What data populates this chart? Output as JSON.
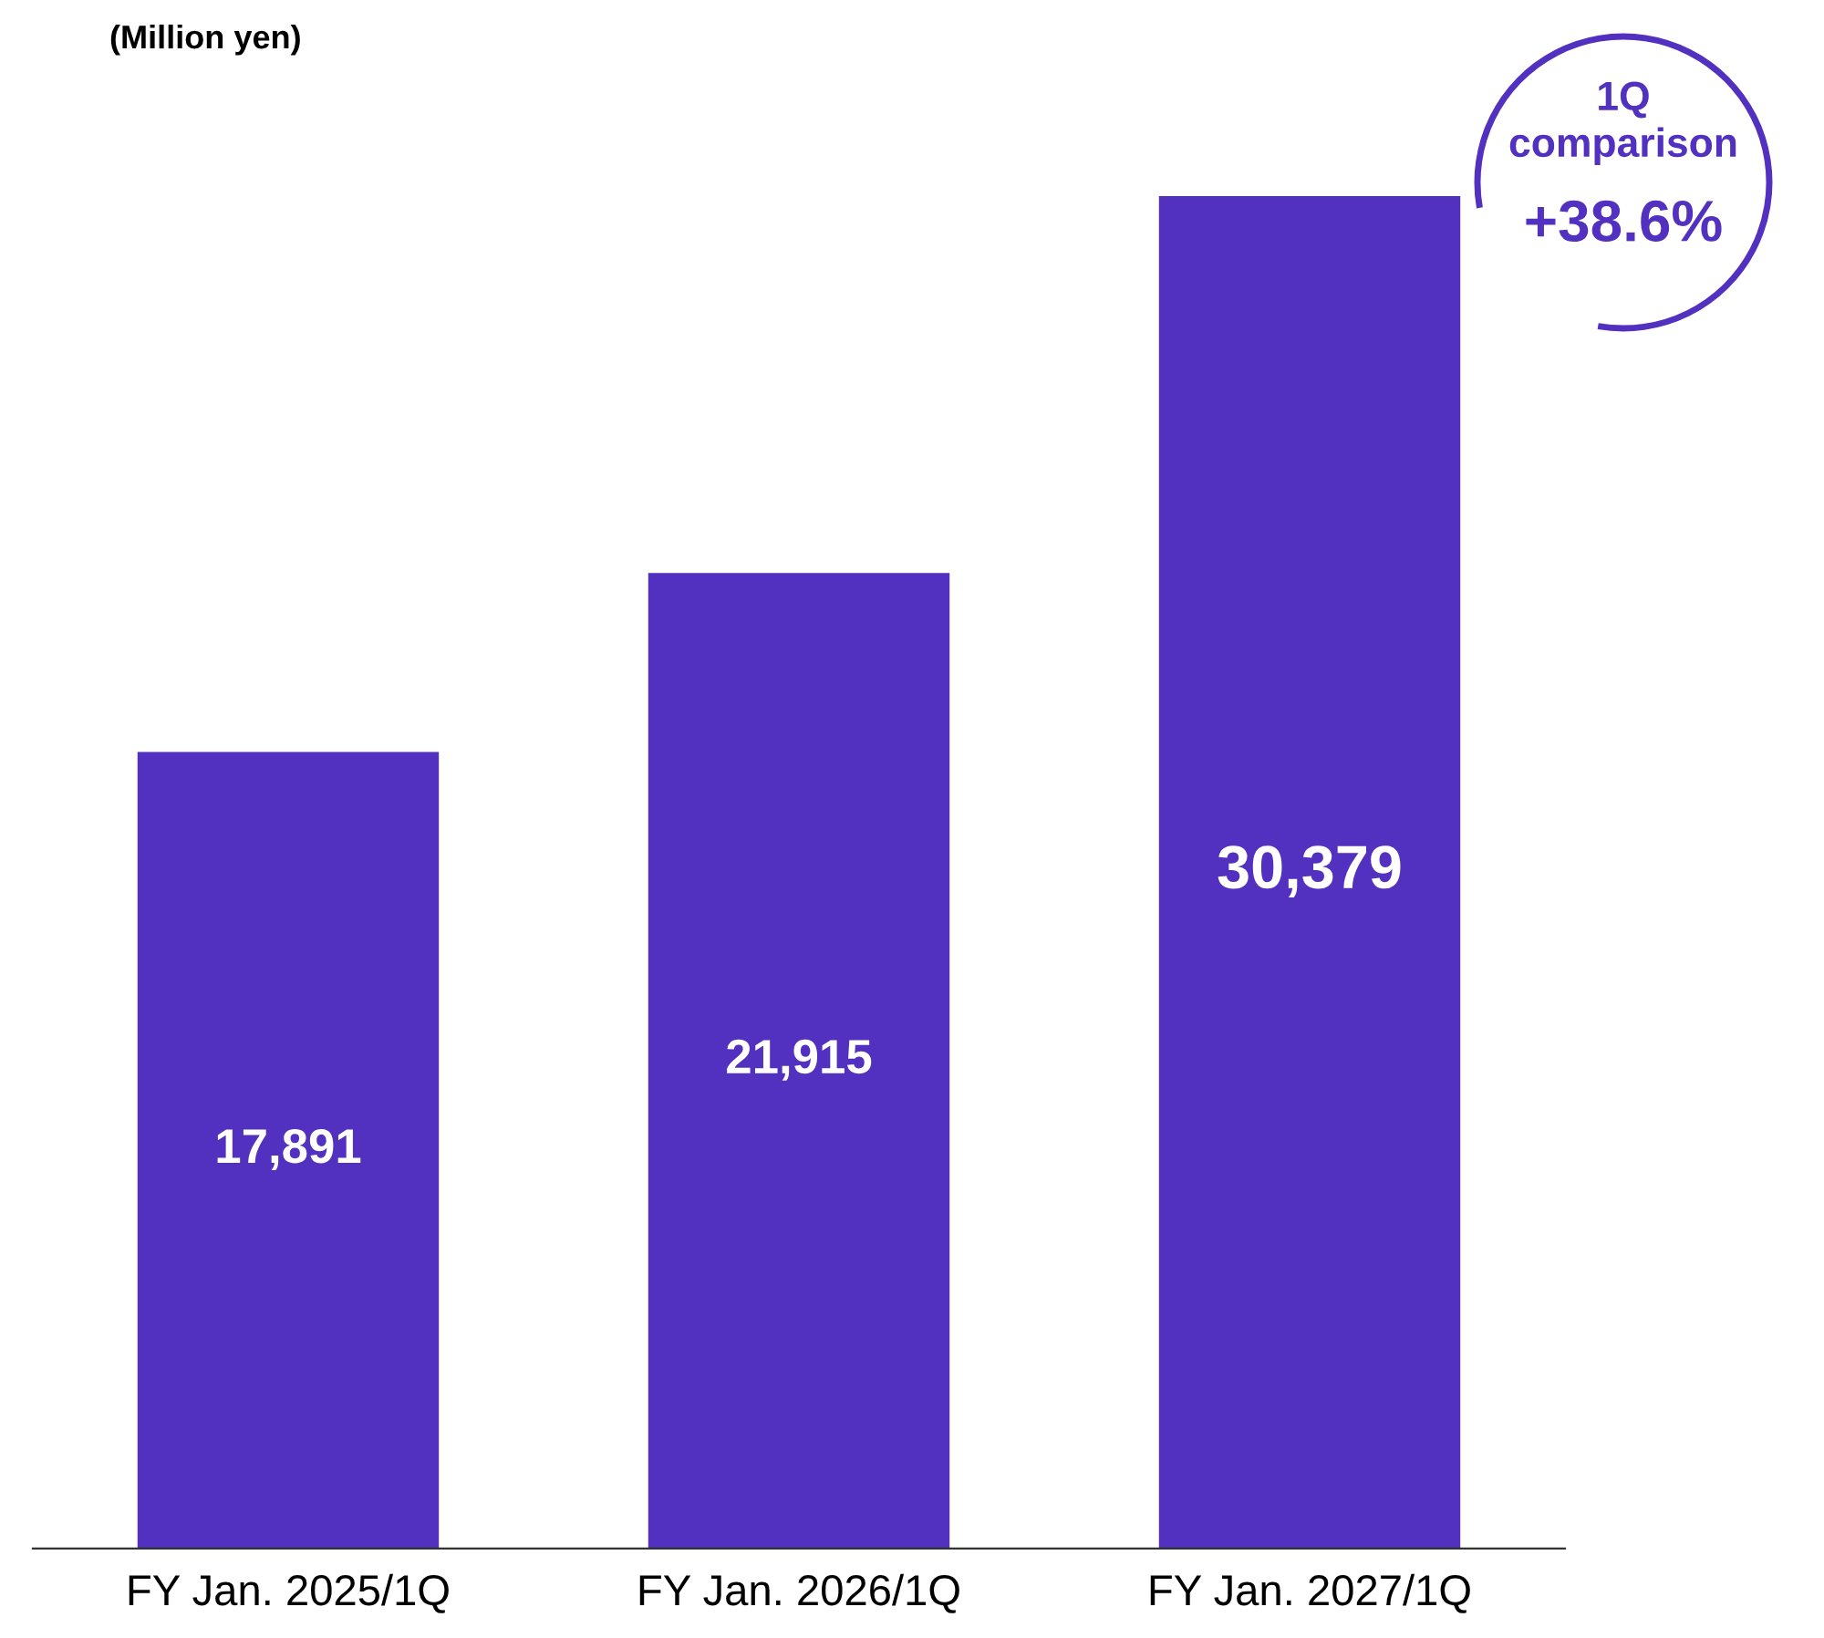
{
  "chart_data": {
    "type": "bar",
    "ylabel": "(Million yen)",
    "categories": [
      "FY Jan. 2025/1Q",
      "FY Jan. 2026/1Q",
      "FY Jan. 2027/1Q"
    ],
    "values": [
      17891,
      21915,
      30379
    ],
    "color": "#5230c0",
    "data_labels": true,
    "value_labels": [
      "17,891",
      "21,915",
      "30,379"
    ],
    "annotations": [
      "1Q\ncomparison",
      "+38.6%"
    ],
    "grid": false,
    "legend": false
  }
}
